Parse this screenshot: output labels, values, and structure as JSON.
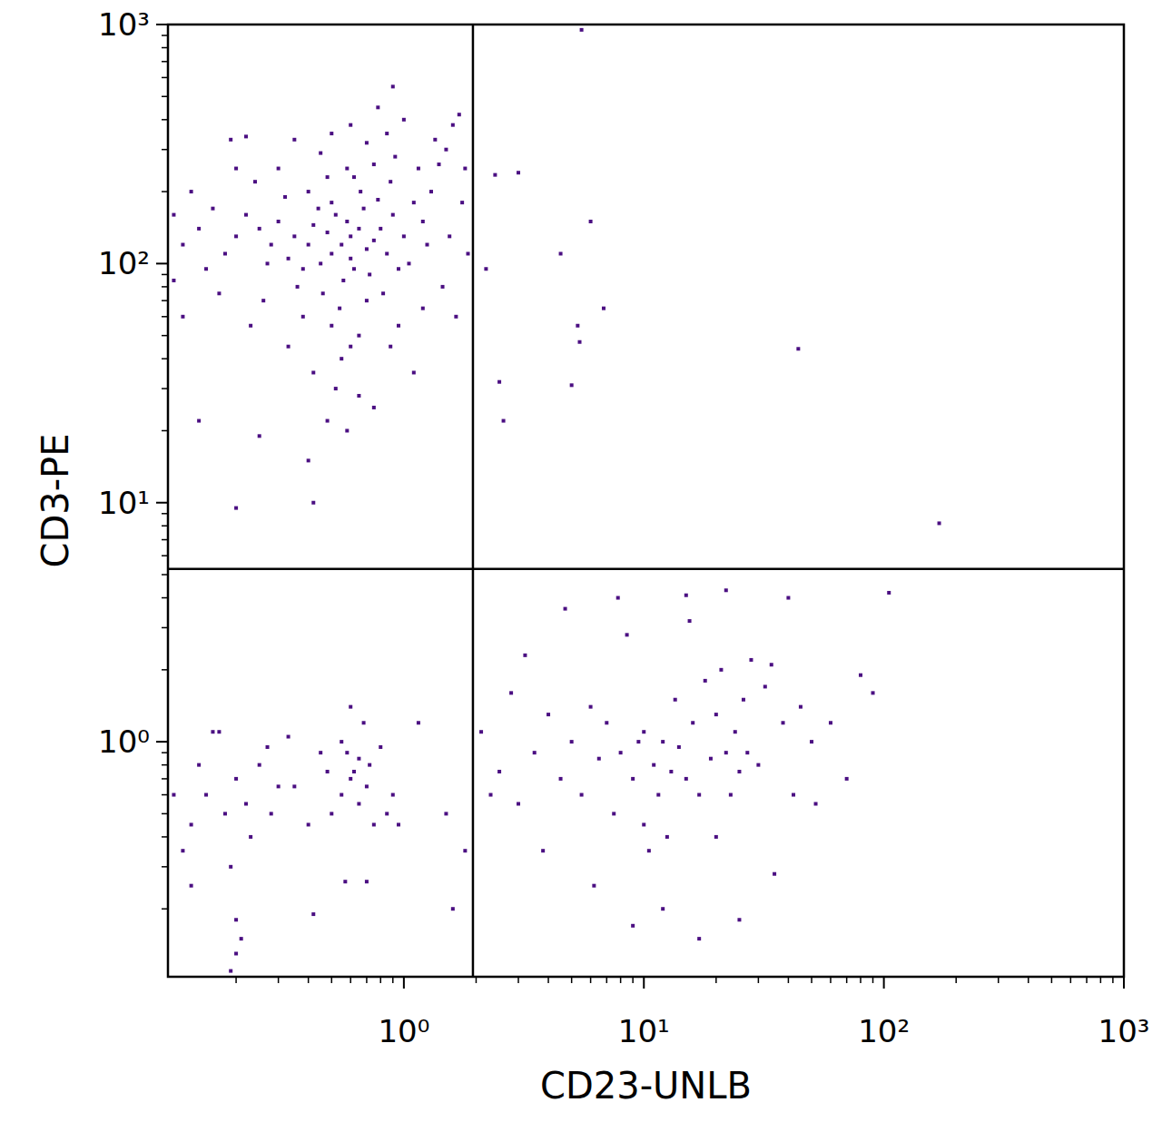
{
  "chart_data": {
    "type": "scatter",
    "xlabel": "CD23-UNLB",
    "ylabel": "CD3-PE",
    "log": true,
    "grid": false,
    "marker": "square",
    "color": "#4b0f82",
    "xlim": [
      0.104,
      1000
    ],
    "ylim": [
      0.104,
      1000
    ],
    "xticks": [
      {
        "value": 1,
        "label": "10⁰"
      },
      {
        "value": 10,
        "label": "10¹"
      },
      {
        "value": 100,
        "label": "10²"
      },
      {
        "value": 1000,
        "label": "10³"
      }
    ],
    "yticks": [
      {
        "value": 1,
        "label": "10⁰"
      },
      {
        "value": 10,
        "label": "10¹"
      },
      {
        "value": 100,
        "label": "10²"
      },
      {
        "value": 1000,
        "label": "10³"
      }
    ],
    "minor_ticks": [
      0.2,
      0.3,
      0.4,
      0.5,
      0.6,
      0.7,
      0.8,
      0.9,
      2,
      3,
      4,
      5,
      6,
      7,
      8,
      9,
      20,
      30,
      40,
      50,
      60,
      70,
      80,
      90,
      200,
      300,
      400,
      500,
      600,
      700,
      800,
      900
    ],
    "quadrant_lines": {
      "x": 1.94,
      "y": 5.28
    },
    "x": [
      0.55,
      0.6,
      0.5,
      0.65,
      0.45,
      0.7,
      0.58,
      0.48,
      0.62,
      0.52,
      0.75,
      0.4,
      0.68,
      0.56,
      0.8,
      0.42,
      0.6,
      0.5,
      0.72,
      0.35,
      0.85,
      0.66,
      0.46,
      0.9,
      0.38,
      0.78,
      0.54,
      0.3,
      1.0,
      0.62,
      0.44,
      0.95,
      0.33,
      1.1,
      0.7,
      0.28,
      0.58,
      1.2,
      0.5,
      0.25,
      0.88,
      0.4,
      1.05,
      0.36,
      0.75,
      0.22,
      1.3,
      0.6,
      0.27,
      1.15,
      0.48,
      0.82,
      0.2,
      1.4,
      0.65,
      0.32,
      0.92,
      0.18,
      1.25,
      0.45,
      0.55,
      1.5,
      0.24,
      0.7,
      0.16,
      1.35,
      0.38,
      0.85,
      0.15,
      1.6,
      0.52,
      0.3,
      1.0,
      0.14,
      1.7,
      0.42,
      0.6,
      0.13,
      1.8,
      0.26,
      0.78,
      0.12,
      0.9,
      0.2,
      1.45,
      0.35,
      0.17,
      1.2,
      0.65,
      0.22,
      0.58,
      0.4,
      0.25,
      0.2,
      0.42,
      0.14,
      0.11,
      0.11,
      0.5,
      0.95,
      1.55,
      1.75,
      1.85,
      1.65,
      0.33,
      0.12,
      0.19,
      0.23,
      0.75,
      1.1,
      0.88,
      0.48,
      0.15,
      0.18,
      0.13,
      0.2,
      0.16,
      0.17,
      0.22,
      0.12,
      0.25,
      0.14,
      0.19,
      0.28,
      0.11,
      0.23,
      0.3,
      0.2,
      0.21,
      0.2,
      0.19,
      0.13,
      0.27,
      0.33,
      0.4,
      0.42,
      0.55,
      0.6,
      0.58,
      0.65,
      0.62,
      0.7,
      0.68,
      0.6,
      0.5,
      0.72,
      0.75,
      0.8,
      0.85,
      0.55,
      0.65,
      0.48,
      0.9,
      0.57,
      0.7,
      0.95,
      1.15,
      1.5,
      1.6,
      1.8,
      0.35,
      0.45,
      2.1,
      2.3,
      2.5,
      2.8,
      3,
      3.2,
      3.5,
      3.8,
      4,
      4.5,
      4.7,
      5,
      5.5,
      6,
      6.5,
      6.2,
      7,
      7.5,
      7.8,
      8,
      8.5,
      9,
      9.5,
      10,
      10,
      10.5,
      11,
      11.5,
      12,
      12,
      12.5,
      13,
      13.5,
      14,
      15,
      15,
      15.5,
      16,
      17,
      17,
      18,
      19,
      20,
      20,
      21,
      22,
      22,
      23,
      24,
      25,
      25,
      26,
      27,
      28,
      30,
      32,
      34,
      35,
      38,
      40,
      42,
      45,
      50,
      52,
      60,
      70,
      80,
      90,
      105,
      9,
      5.5,
      2.4,
      3,
      6,
      4.5,
      2.2,
      5.3,
      5.4,
      6.8,
      5,
      2.6,
      2.5,
      44,
      170
    ],
    "values": [
      120,
      130,
      110,
      140,
      100,
      115,
      150,
      135,
      95,
      160,
      125,
      120,
      170,
      85,
      140,
      145,
      105,
      180,
      90,
      130,
      110,
      200,
      75,
      160,
      95,
      185,
      65,
      150,
      130,
      230,
      170,
      95,
      105,
      180,
      70,
      120,
      250,
      150,
      55,
      140,
      220,
      200,
      100,
      80,
      260,
      160,
      200,
      45,
      100,
      250,
      230,
      75,
      130,
      260,
      50,
      190,
      280,
      110,
      120,
      290,
      40,
      300,
      220,
      320,
      170,
      330,
      60,
      350,
      95,
      380,
      30,
      250,
      400,
      140,
      420,
      35,
      380,
      200,
      250,
      70,
      450,
      120,
      550,
      250,
      80,
      330,
      75,
      65,
      28,
      340,
      20,
      15,
      19,
      9.5,
      10,
      22,
      85,
      160,
      350,
      55,
      130,
      180,
      110,
      60,
      45,
      60,
      330,
      55,
      25,
      35,
      45,
      22,
      0.6,
      0.5,
      0.45,
      0.7,
      1.1,
      1.1,
      0.55,
      0.35,
      0.8,
      0.8,
      0.3,
      0.5,
      0.6,
      0.4,
      0.65,
      0.18,
      0.15,
      0.13,
      0.11,
      0.25,
      0.95,
      1.05,
      0.45,
      0.19,
      0.6,
      0.7,
      0.9,
      0.55,
      0.75,
      0.65,
      1.2,
      1.4,
      0.5,
      0.8,
      0.45,
      0.95,
      0.5,
      1.0,
      0.85,
      0.75,
      0.6,
      0.26,
      0.26,
      0.45,
      1.2,
      0.5,
      0.2,
      0.35,
      0.65,
      0.9,
      1.1,
      0.6,
      0.75,
      1.6,
      0.55,
      2.3,
      0.9,
      0.35,
      1.3,
      0.7,
      3.6,
      1.0,
      0.6,
      1.4,
      0.85,
      0.25,
      1.2,
      0.5,
      4.0,
      0.9,
      2.8,
      0.7,
      1.0,
      0.45,
      1.1,
      0.35,
      0.8,
      0.6,
      1.0,
      0.2,
      0.4,
      0.75,
      1.5,
      0.95,
      0.7,
      4.1,
      3.2,
      1.2,
      0.6,
      0.15,
      1.8,
      0.85,
      1.3,
      0.4,
      2.0,
      0.9,
      4.3,
      0.6,
      1.1,
      0.75,
      0.18,
      1.5,
      0.9,
      2.2,
      0.8,
      1.7,
      2.1,
      0.28,
      1.2,
      4.0,
      0.6,
      1.4,
      1.0,
      0.55,
      1.2,
      0.7,
      1.9,
      1.6,
      4.2,
      0.17,
      950,
      235,
      240,
      150,
      110,
      95,
      55,
      47,
      65,
      31,
      22,
      32,
      44,
      8.2
    ]
  }
}
